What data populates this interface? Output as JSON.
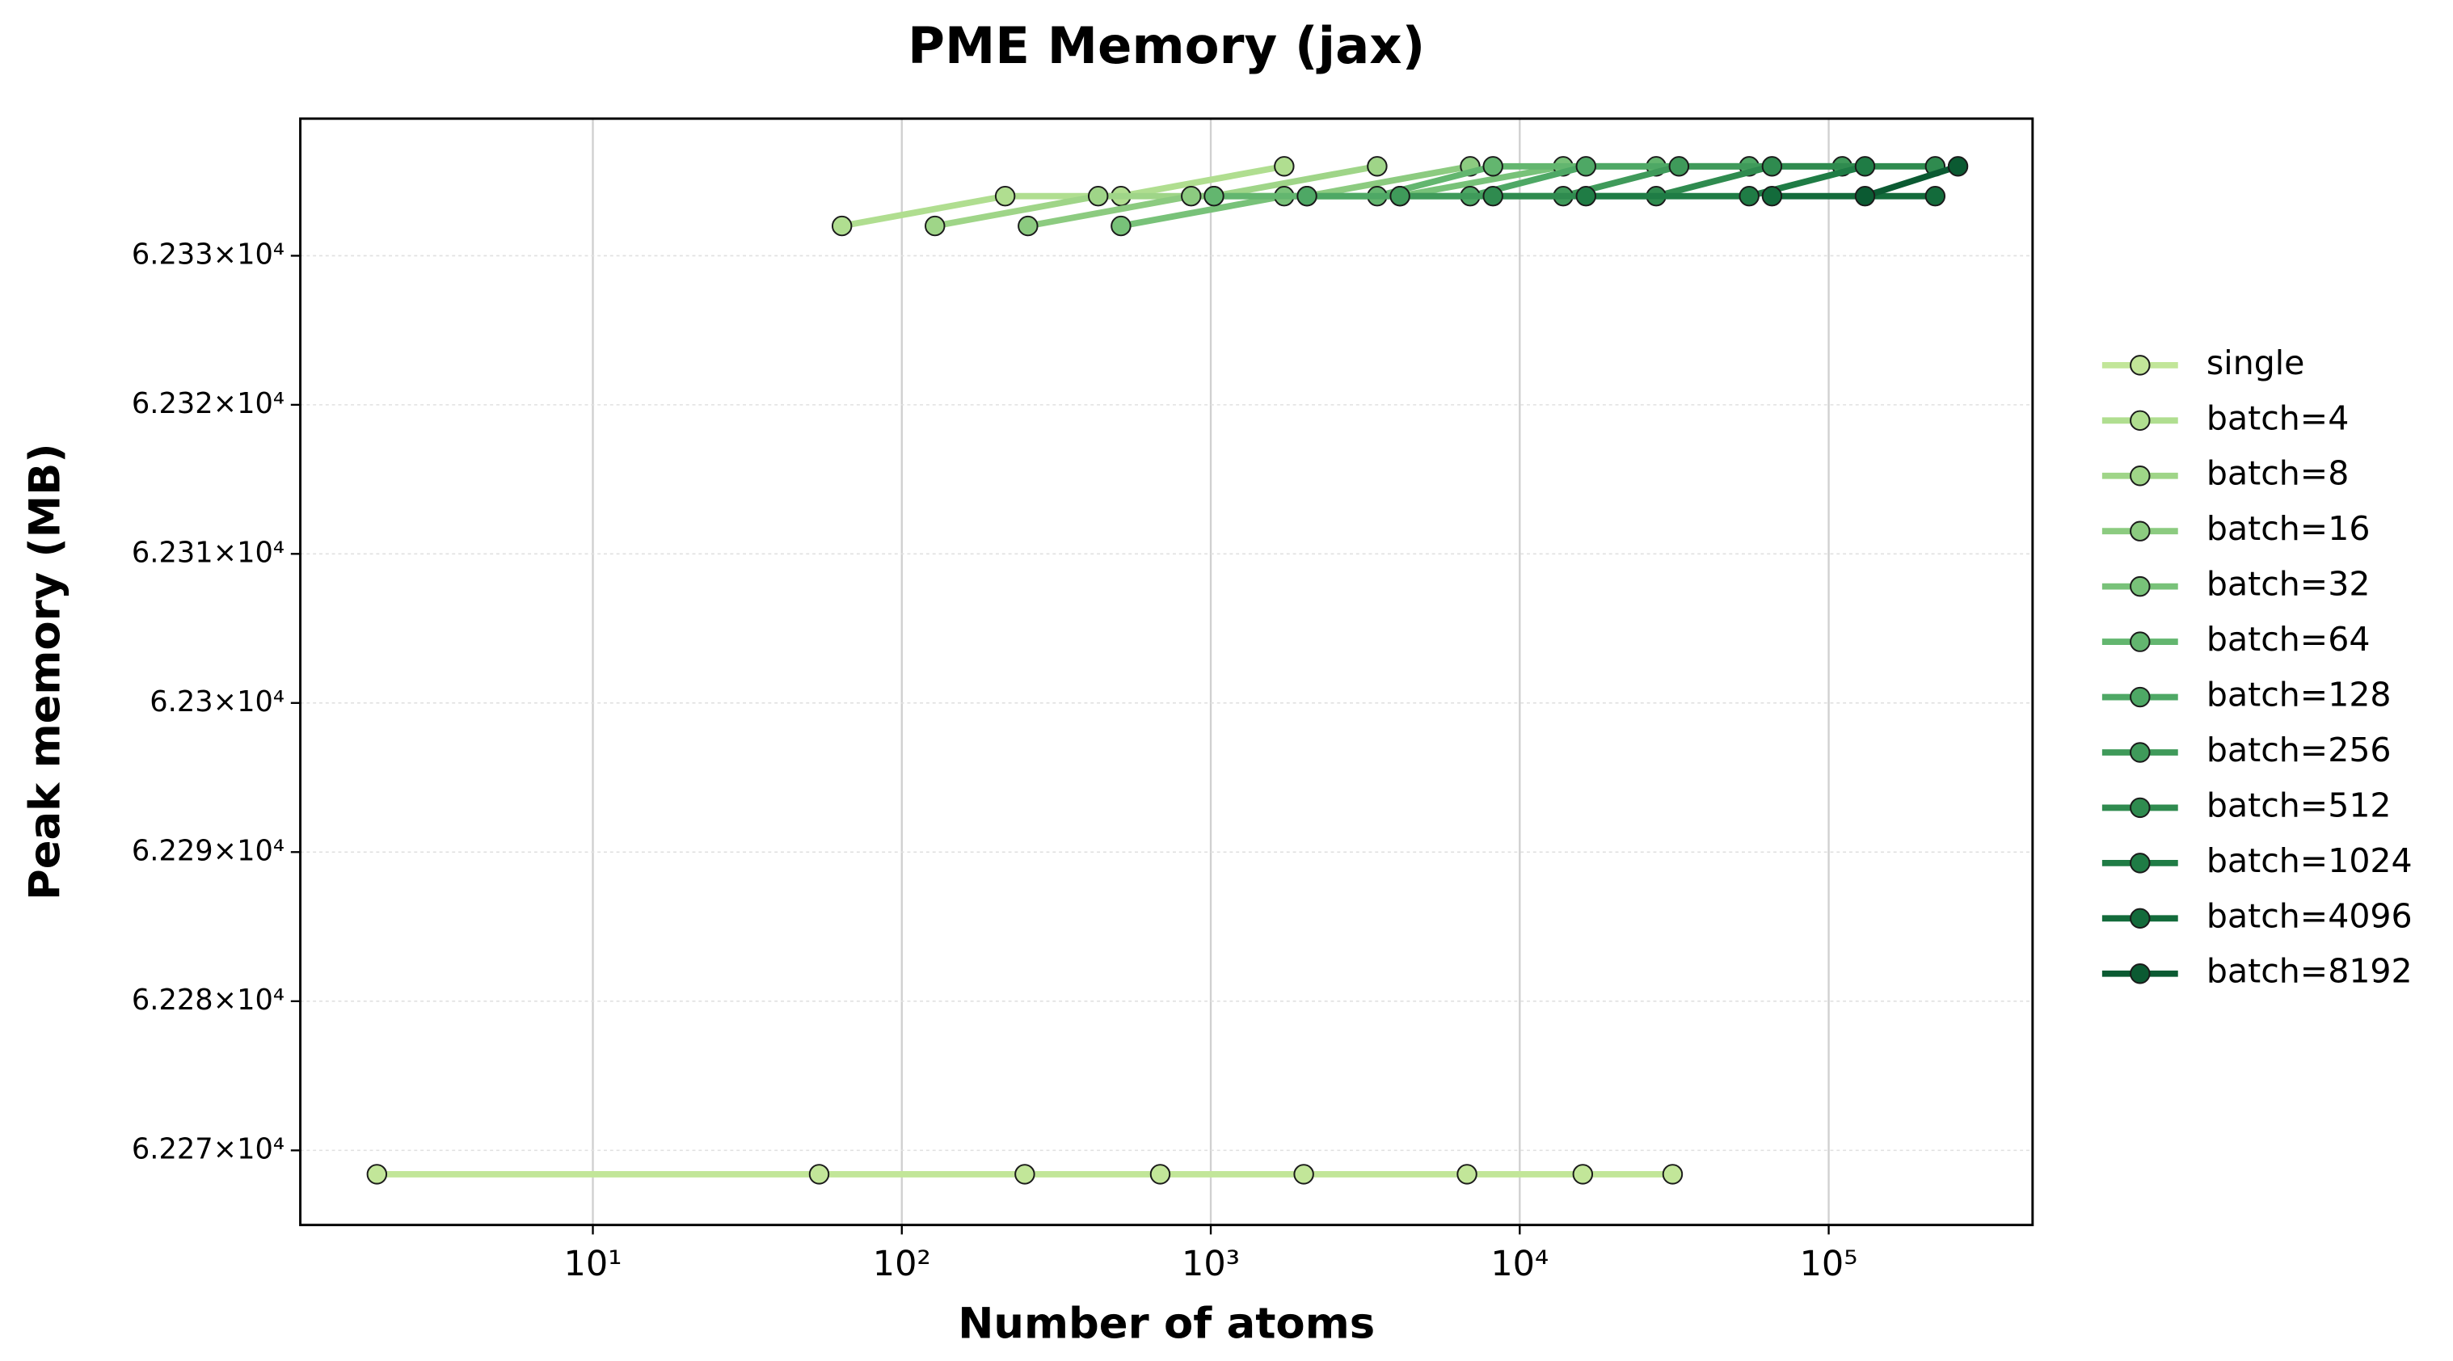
{
  "chart_data": {
    "type": "line",
    "title": "PME Memory (jax)",
    "x_label": "Number of atoms",
    "y_label": "Peak memory (MB)",
    "xscale": "log",
    "yscale": "log",
    "xlim": [
      1.13,
      457000
    ],
    "ylim": [
      62265,
      62339.2
    ],
    "xticks": [
      {
        "value": 10,
        "label": "10¹"
      },
      {
        "value": 100,
        "label": "10²"
      },
      {
        "value": 1000,
        "label": "10³"
      },
      {
        "value": 10000,
        "label": "10⁴"
      },
      {
        "value": 100000,
        "label": "10⁵"
      }
    ],
    "yticks": [
      {
        "value": 62270,
        "label": "6.227×10⁴"
      },
      {
        "value": 62280,
        "label": "6.228×10⁴"
      },
      {
        "value": 62290,
        "label": "6.229×10⁴"
      },
      {
        "value": 62300,
        "label": "6.23×10⁴"
      },
      {
        "value": 62310,
        "label": "6.231×10⁴"
      },
      {
        "value": 62320,
        "label": "6.232×10⁴"
      },
      {
        "value": 62330,
        "label": "6.233×10⁴"
      }
    ],
    "grid": true,
    "legend": "outside right",
    "series": [
      {
        "name": "single",
        "color": "#c2e699",
        "x": [
          2,
          54,
          250,
          686,
          2000,
          6750,
          16000,
          31250
        ],
        "values": [
          62268.4,
          62268.4,
          62268.4,
          62268.4,
          62268.4,
          62268.4,
          62268.4,
          62268.4
        ]
      },
      {
        "name": "batch=4",
        "color": "#b0de90",
        "x": [
          64,
          216,
          512,
          1728
        ],
        "values": [
          62332,
          62334,
          62334,
          62336
        ]
      },
      {
        "name": "batch=8",
        "color": "#9fd588",
        "x": [
          128,
          432,
          1024,
          3456
        ],
        "values": [
          62332,
          62334,
          62334,
          62336
        ]
      },
      {
        "name": "batch=16",
        "color": "#8ccb80",
        "x": [
          256,
          864,
          2048,
          6912
        ],
        "values": [
          62332,
          62334,
          62334,
          62336
        ]
      },
      {
        "name": "batch=32",
        "color": "#78c279",
        "x": [
          512,
          1728,
          4096,
          13824
        ],
        "values": [
          62332,
          62334,
          62334,
          62336
        ]
      },
      {
        "name": "batch=64",
        "color": "#63b66f",
        "x": [
          1024,
          3456,
          8192,
          27648
        ],
        "values": [
          62334,
          62334,
          62336,
          62336
        ]
      },
      {
        "name": "batch=128",
        "color": "#4ea865",
        "x": [
          2048,
          6912,
          16384,
          55296
        ],
        "values": [
          62334,
          62334,
          62336,
          62336
        ]
      },
      {
        "name": "batch=256",
        "color": "#3f9a5a",
        "x": [
          4096,
          13824,
          32768,
          110592
        ],
        "values": [
          62334,
          62334,
          62336,
          62336
        ]
      },
      {
        "name": "batch=512",
        "color": "#2f8b4f",
        "x": [
          8192,
          27648,
          65536,
          221184
        ],
        "values": [
          62334,
          62334,
          62336,
          62336
        ]
      },
      {
        "name": "batch=1024",
        "color": "#1f7c45",
        "x": [
          16384,
          55296,
          131072
        ],
        "values": [
          62334,
          62334,
          62336
        ]
      },
      {
        "name": "batch=4096",
        "color": "#136b3b",
        "x": [
          65536,
          221184
        ],
        "values": [
          62334,
          62334
        ]
      },
      {
        "name": "batch=8192",
        "color": "#0b5a32",
        "x": [
          131072,
          262144
        ],
        "values": [
          62334,
          62336
        ]
      }
    ]
  }
}
